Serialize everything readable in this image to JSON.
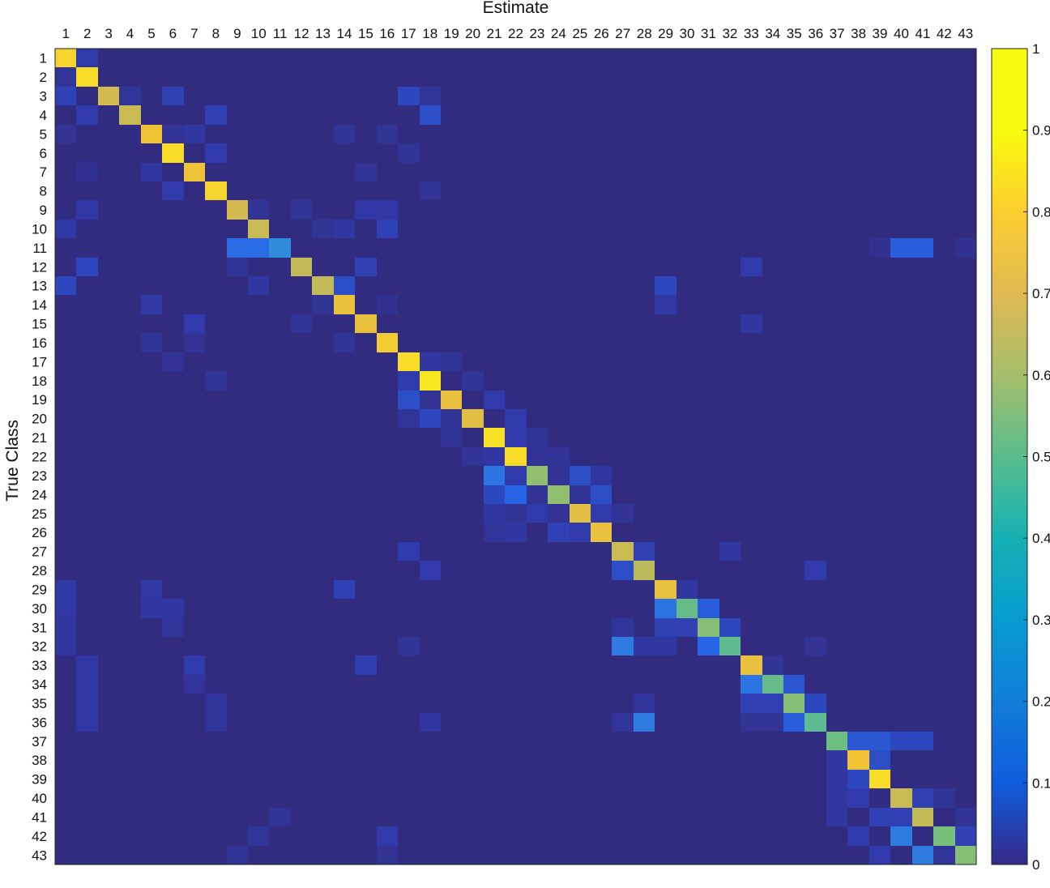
{
  "chart_data": {
    "type": "heatmap",
    "title": "",
    "xlabel": "Estimate",
    "ylabel": "True Class",
    "x_categories": [
      "1",
      "2",
      "3",
      "4",
      "5",
      "6",
      "7",
      "8",
      "9",
      "10",
      "11",
      "12",
      "13",
      "14",
      "15",
      "16",
      "17",
      "18",
      "19",
      "20",
      "21",
      "22",
      "23",
      "24",
      "25",
      "26",
      "27",
      "28",
      "29",
      "30",
      "31",
      "32",
      "33",
      "34",
      "35",
      "36",
      "37",
      "38",
      "39",
      "40",
      "41",
      "42",
      "43"
    ],
    "y_categories": [
      "1",
      "2",
      "3",
      "4",
      "5",
      "6",
      "7",
      "8",
      "9",
      "10",
      "11",
      "12",
      "13",
      "14",
      "15",
      "16",
      "17",
      "18",
      "19",
      "20",
      "21",
      "22",
      "23",
      "24",
      "25",
      "26",
      "27",
      "28",
      "29",
      "30",
      "31",
      "32",
      "33",
      "34",
      "35",
      "36",
      "37",
      "38",
      "39",
      "40",
      "41",
      "42",
      "43"
    ],
    "colorbar": {
      "range": [
        0,
        1
      ],
      "ticks": [
        0,
        0.1,
        0.2,
        0.3,
        0.4,
        0.5,
        0.6,
        0.7,
        0.8,
        0.9,
        1
      ],
      "tick_labels": [
        "0",
        "0.1",
        "0.2",
        "0.3",
        "0.4",
        "0.5",
        "0.6",
        "0.7",
        "0.8",
        "0.9",
        "1"
      ],
      "colormap": "parula"
    },
    "diagonal": [
      0.92,
      0.94,
      0.8,
      0.78,
      0.88,
      0.94,
      0.88,
      0.92,
      0.8,
      0.78,
      0.3,
      0.76,
      0.76,
      0.86,
      0.86,
      0.9,
      0.94,
      0.96,
      0.86,
      0.84,
      0.95,
      0.94,
      0.66,
      0.66,
      0.84,
      0.86,
      0.78,
      0.74,
      0.86,
      0.58,
      0.64,
      0.56,
      0.86,
      0.58,
      0.64,
      0.56,
      0.6,
      0.88,
      0.94,
      0.78,
      0.76,
      0.62,
      0.64
    ],
    "off_diagonal": [
      [
        1,
        2,
        0.08
      ],
      [
        2,
        1,
        0.05
      ],
      [
        3,
        1,
        0.1
      ],
      [
        3,
        4,
        0.05
      ],
      [
        3,
        6,
        0.1
      ],
      [
        3,
        17,
        0.12
      ],
      [
        3,
        18,
        0.05
      ],
      [
        4,
        2,
        0.08
      ],
      [
        4,
        8,
        0.1
      ],
      [
        4,
        18,
        0.14
      ],
      [
        5,
        1,
        0.04
      ],
      [
        5,
        6,
        0.04
      ],
      [
        5,
        7,
        0.06
      ],
      [
        5,
        14,
        0.04
      ],
      [
        5,
        16,
        0.04
      ],
      [
        6,
        8,
        0.08
      ],
      [
        6,
        17,
        0.04
      ],
      [
        7,
        2,
        0.03
      ],
      [
        7,
        5,
        0.06
      ],
      [
        7,
        15,
        0.04
      ],
      [
        8,
        6,
        0.08
      ],
      [
        8,
        18,
        0.04
      ],
      [
        9,
        2,
        0.07
      ],
      [
        9,
        10,
        0.04
      ],
      [
        9,
        12,
        0.04
      ],
      [
        9,
        15,
        0.07
      ],
      [
        9,
        16,
        0.07
      ],
      [
        10,
        1,
        0.07
      ],
      [
        10,
        13,
        0.04
      ],
      [
        10,
        14,
        0.06
      ],
      [
        10,
        16,
        0.1
      ],
      [
        11,
        9,
        0.22
      ],
      [
        11,
        10,
        0.22
      ],
      [
        11,
        39,
        0.03
      ],
      [
        11,
        40,
        0.18
      ],
      [
        11,
        41,
        0.18
      ],
      [
        11,
        43,
        0.03
      ],
      [
        12,
        2,
        0.12
      ],
      [
        12,
        9,
        0.04
      ],
      [
        12,
        15,
        0.1
      ],
      [
        12,
        33,
        0.08
      ],
      [
        13,
        1,
        0.12
      ],
      [
        13,
        10,
        0.06
      ],
      [
        13,
        14,
        0.14
      ],
      [
        13,
        29,
        0.12
      ],
      [
        14,
        5,
        0.07
      ],
      [
        14,
        13,
        0.04
      ],
      [
        14,
        16,
        0.03
      ],
      [
        14,
        29,
        0.07
      ],
      [
        15,
        7,
        0.08
      ],
      [
        15,
        12,
        0.04
      ],
      [
        15,
        33,
        0.06
      ],
      [
        16,
        5,
        0.04
      ],
      [
        16,
        7,
        0.04
      ],
      [
        16,
        14,
        0.04
      ],
      [
        17,
        6,
        0.04
      ],
      [
        17,
        18,
        0.06
      ],
      [
        17,
        19,
        0.04
      ],
      [
        18,
        8,
        0.04
      ],
      [
        18,
        17,
        0.08
      ],
      [
        18,
        20,
        0.04
      ],
      [
        19,
        17,
        0.14
      ],
      [
        19,
        18,
        0.04
      ],
      [
        19,
        21,
        0.08
      ],
      [
        20,
        17,
        0.05
      ],
      [
        20,
        18,
        0.12
      ],
      [
        20,
        19,
        0.04
      ],
      [
        20,
        22,
        0.08
      ],
      [
        21,
        19,
        0.04
      ],
      [
        21,
        22,
        0.08
      ],
      [
        21,
        23,
        0.04
      ],
      [
        22,
        20,
        0.04
      ],
      [
        22,
        21,
        0.06
      ],
      [
        22,
        23,
        0.04
      ],
      [
        22,
        24,
        0.04
      ],
      [
        23,
        21,
        0.24
      ],
      [
        23,
        22,
        0.08
      ],
      [
        23,
        24,
        0.04
      ],
      [
        23,
        25,
        0.14
      ],
      [
        23,
        26,
        0.06
      ],
      [
        24,
        21,
        0.12
      ],
      [
        24,
        22,
        0.2
      ],
      [
        24,
        23,
        0.04
      ],
      [
        24,
        25,
        0.04
      ],
      [
        24,
        26,
        0.14
      ],
      [
        25,
        21,
        0.06
      ],
      [
        25,
        22,
        0.04
      ],
      [
        25,
        23,
        0.08
      ],
      [
        25,
        24,
        0.04
      ],
      [
        25,
        26,
        0.08
      ],
      [
        25,
        27,
        0.04
      ],
      [
        26,
        21,
        0.05
      ],
      [
        26,
        22,
        0.06
      ],
      [
        26,
        24,
        0.1
      ],
      [
        26,
        25,
        0.08
      ],
      [
        27,
        17,
        0.08
      ],
      [
        27,
        28,
        0.1
      ],
      [
        27,
        32,
        0.06
      ],
      [
        28,
        18,
        0.08
      ],
      [
        28,
        27,
        0.14
      ],
      [
        28,
        36,
        0.08
      ],
      [
        29,
        1,
        0.07
      ],
      [
        29,
        5,
        0.07
      ],
      [
        29,
        14,
        0.1
      ],
      [
        29,
        30,
        0.06
      ],
      [
        30,
        1,
        0.07
      ],
      [
        30,
        5,
        0.06
      ],
      [
        30,
        6,
        0.06
      ],
      [
        30,
        29,
        0.24
      ],
      [
        30,
        31,
        0.18
      ],
      [
        31,
        1,
        0.06
      ],
      [
        31,
        6,
        0.05
      ],
      [
        31,
        27,
        0.05
      ],
      [
        31,
        29,
        0.1
      ],
      [
        31,
        30,
        0.1
      ],
      [
        31,
        32,
        0.12
      ],
      [
        32,
        1,
        0.06
      ],
      [
        32,
        17,
        0.04
      ],
      [
        32,
        27,
        0.26
      ],
      [
        32,
        28,
        0.06
      ],
      [
        32,
        29,
        0.06
      ],
      [
        32,
        31,
        0.2
      ],
      [
        32,
        36,
        0.04
      ],
      [
        33,
        2,
        0.07
      ],
      [
        33,
        7,
        0.08
      ],
      [
        33,
        15,
        0.09
      ],
      [
        33,
        34,
        0.04
      ],
      [
        34,
        2,
        0.07
      ],
      [
        34,
        7,
        0.05
      ],
      [
        34,
        33,
        0.24
      ],
      [
        34,
        35,
        0.16
      ],
      [
        35,
        2,
        0.07
      ],
      [
        35,
        8,
        0.05
      ],
      [
        35,
        28,
        0.05
      ],
      [
        35,
        33,
        0.1
      ],
      [
        35,
        34,
        0.1
      ],
      [
        35,
        36,
        0.12
      ],
      [
        36,
        2,
        0.07
      ],
      [
        36,
        8,
        0.05
      ],
      [
        36,
        18,
        0.06
      ],
      [
        36,
        27,
        0.05
      ],
      [
        36,
        28,
        0.26
      ],
      [
        36,
        33,
        0.04
      ],
      [
        36,
        34,
        0.04
      ],
      [
        36,
        35,
        0.18
      ],
      [
        37,
        38,
        0.16
      ],
      [
        37,
        39,
        0.16
      ],
      [
        37,
        40,
        0.12
      ],
      [
        37,
        41,
        0.12
      ],
      [
        38,
        37,
        0.06
      ],
      [
        38,
        39,
        0.14
      ],
      [
        39,
        37,
        0.06
      ],
      [
        39,
        38,
        0.12
      ],
      [
        40,
        37,
        0.06
      ],
      [
        40,
        38,
        0.08
      ],
      [
        40,
        41,
        0.1
      ],
      [
        40,
        42,
        0.04
      ],
      [
        41,
        11,
        0.04
      ],
      [
        41,
        37,
        0.06
      ],
      [
        41,
        39,
        0.1
      ],
      [
        41,
        40,
        0.1
      ],
      [
        41,
        43,
        0.04
      ],
      [
        42,
        10,
        0.05
      ],
      [
        42,
        16,
        0.08
      ],
      [
        42,
        38,
        0.08
      ],
      [
        42,
        40,
        0.26
      ],
      [
        42,
        43,
        0.1
      ],
      [
        43,
        9,
        0.04
      ],
      [
        43,
        16,
        0.04
      ],
      [
        43,
        39,
        0.08
      ],
      [
        43,
        41,
        0.26
      ],
      [
        43,
        42,
        0.05
      ]
    ]
  }
}
